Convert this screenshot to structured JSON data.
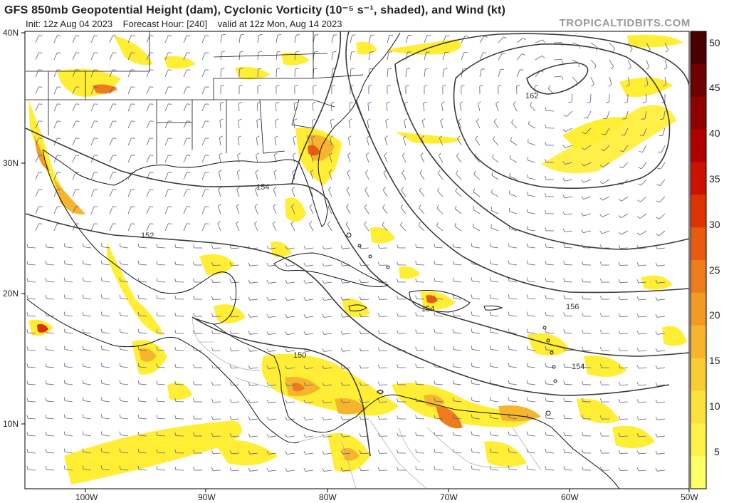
{
  "header": {
    "title": "GFS 850mb Geopotential Height (dam), Cyclonic Vorticity (10⁻⁵ s⁻¹, shaded), and Wind (kt)",
    "subtitle_init": "Init: 12z Aug 04 2023",
    "subtitle_forecast": "Forecast Hour: [240]",
    "subtitle_valid": "valid at 12z Mon, Aug 14 2023",
    "brand": "TROPICALTIDBITS.COM"
  },
  "axes": {
    "lat_labels": [
      "40N",
      "30N",
      "20N",
      "10N"
    ],
    "lon_labels": [
      "100W",
      "90W",
      "80W",
      "70W",
      "60W",
      "50W"
    ]
  },
  "colorbar": {
    "labels": [
      "50",
      "45",
      "40",
      "35",
      "30",
      "25",
      "20",
      "15",
      "10",
      "5"
    ],
    "colors": [
      "#4a0000",
      "#6e0000",
      "#8f0000",
      "#b00000",
      "#cc1100",
      "#dd3300",
      "#e85a10",
      "#ef7c1c",
      "#f39a24",
      "#f6b52c",
      "#f8cd34",
      "#fae23c",
      "#fff14a",
      "#ffff66"
    ]
  },
  "contours": {
    "labels": [
      "162",
      "154",
      "152",
      "156",
      "154",
      "154",
      "150"
    ]
  },
  "colors": {
    "contour": "#3a3a3a",
    "coast": "#111111",
    "borders": "#999999",
    "barb": "#5b5a8e",
    "vort_low": "#ffee33",
    "vort_mid": "#f6b52c",
    "vort_high": "#dd3300"
  }
}
